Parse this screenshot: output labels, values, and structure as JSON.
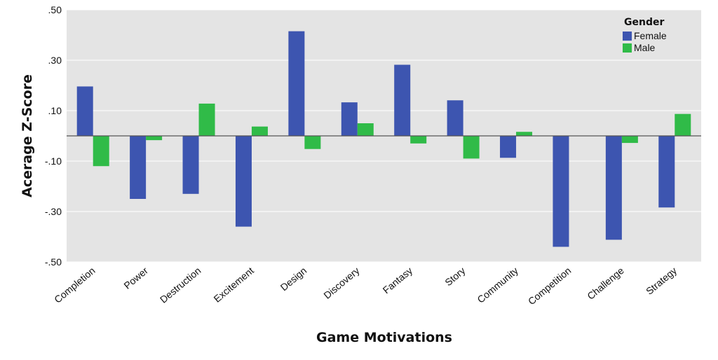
{
  "chart_data": {
    "type": "bar",
    "title": "",
    "xlabel": "Game Motivations",
    "ylabel": "Acerage Z-Score",
    "ylim": [
      -0.5,
      0.5
    ],
    "yticks": [
      0.5,
      0.3,
      0.1,
      -0.1,
      -0.3,
      -0.5
    ],
    "ytick_labels": [
      ".50",
      ".30",
      ".10",
      "-.10",
      "-.30",
      "-.50"
    ],
    "grid": true,
    "legend": {
      "title": "Gender",
      "position": "top-right"
    },
    "categories": [
      "Completion",
      "Power",
      "Destruction",
      "Excitement",
      "Design",
      "Discovery",
      "Fantasy",
      "Story",
      "Community",
      "Competition",
      "Challenge",
      "Strategy"
    ],
    "series": [
      {
        "name": "Female",
        "color": "#3d55b0",
        "values": [
          0.196,
          -0.25,
          -0.23,
          -0.36,
          0.415,
          0.133,
          0.282,
          0.141,
          -0.087,
          -0.44,
          -0.412,
          -0.284
        ]
      },
      {
        "name": "Male",
        "color": "#30bb48",
        "values": [
          -0.12,
          -0.017,
          0.128,
          0.037,
          -0.052,
          0.05,
          -0.03,
          -0.09,
          0.016,
          0.0,
          -0.028,
          0.087
        ]
      }
    ]
  }
}
